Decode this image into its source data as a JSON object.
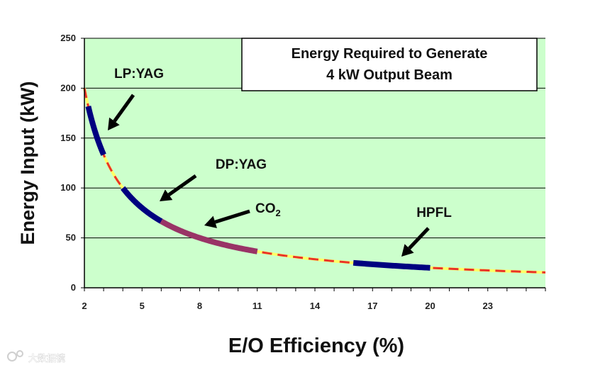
{
  "chart_data": {
    "type": "line",
    "title_lines": [
      "Energy Required to Generate",
      "4 kW Output Beam"
    ],
    "xlabel": "E/O Efficiency (%)",
    "ylabel": "Energy Input (kW)",
    "xlim": [
      2,
      26
    ],
    "ylim": [
      0,
      250
    ],
    "x_ticks": [
      2,
      5,
      8,
      11,
      14,
      17,
      20,
      23
    ],
    "y_ticks": [
      0,
      50,
      100,
      150,
      200,
      250
    ],
    "grid": true,
    "curve": {
      "formula": "400 / x",
      "x_start": 2,
      "x_end": 26
    },
    "segments": [
      {
        "name": "LP:YAG",
        "x_range": [
          2.2,
          3
        ],
        "color": "#000080"
      },
      {
        "name": "DP:YAG",
        "x_range": [
          4,
          6
        ],
        "color": "#000080"
      },
      {
        "name": "CO2",
        "x_range": [
          6,
          11
        ],
        "color": "#993366"
      },
      {
        "name": "HPFL",
        "x_range": [
          16,
          20
        ],
        "color": "#000080"
      }
    ],
    "annotations": [
      {
        "text": "LP:YAG",
        "target": "LP:YAG"
      },
      {
        "text": "DP:YAG",
        "target": "DP:YAG"
      },
      {
        "text": "CO",
        "subscript": "2",
        "target": "CO2"
      },
      {
        "text": "HPFL",
        "target": "HPFL"
      }
    ],
    "colors": {
      "plot_bg": "#ccffcc",
      "grid": "#000000",
      "dash_red": "#e8332a",
      "dash_yellow": "#ffff66"
    }
  },
  "watermark": "大数据镜"
}
